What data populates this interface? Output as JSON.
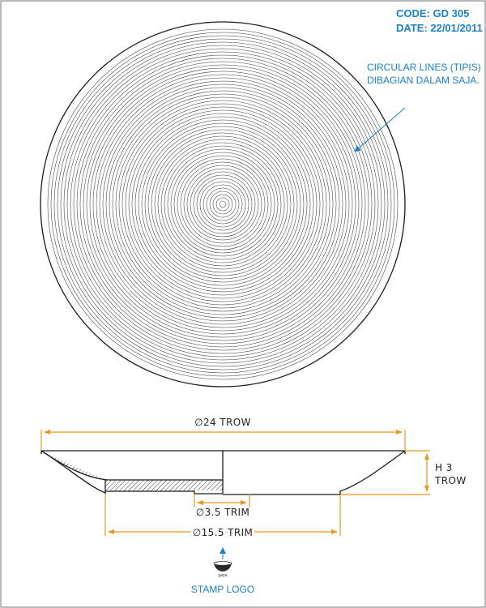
{
  "header": {
    "code": "CODE: GD 305",
    "date": "DATE: 22/01/2011"
  },
  "note": {
    "line1": "CIRCULAR LINES (TIPIS)",
    "line2": "DIBAGIAN DALAM SAJA."
  },
  "dimensions": {
    "outer_diameter": "∅24 TROW",
    "height_line1": "H 3",
    "height_line2": "TROW",
    "inner_trim": "∅3.5 TRIM",
    "base_trim": "∅15.5 TRIM"
  },
  "stamp": {
    "brand": "gaya",
    "label": "STAMP LOGO"
  },
  "colors": {
    "annotation": "#1a82c4",
    "dimension": "#e8961e",
    "ink": "#1a1a1a"
  }
}
